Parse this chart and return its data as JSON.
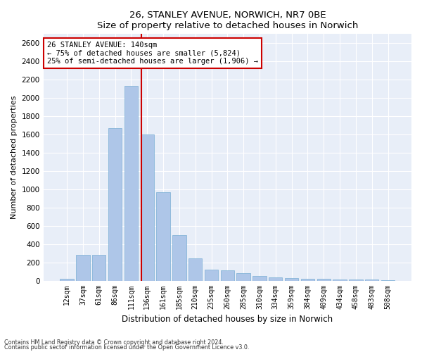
{
  "title1": "26, STANLEY AVENUE, NORWICH, NR7 0BE",
  "title2": "Size of property relative to detached houses in Norwich",
  "xlabel": "Distribution of detached houses by size in Norwich",
  "ylabel": "Number of detached properties",
  "categories": [
    "12sqm",
    "37sqm",
    "61sqm",
    "86sqm",
    "111sqm",
    "136sqm",
    "161sqm",
    "185sqm",
    "210sqm",
    "235sqm",
    "260sqm",
    "285sqm",
    "310sqm",
    "334sqm",
    "359sqm",
    "384sqm",
    "409sqm",
    "434sqm",
    "458sqm",
    "483sqm",
    "508sqm"
  ],
  "values": [
    20,
    280,
    280,
    1670,
    2130,
    1600,
    970,
    500,
    240,
    120,
    110,
    85,
    50,
    38,
    28,
    22,
    18,
    12,
    10,
    12,
    5
  ],
  "bar_color": "#aec6e8",
  "bar_edge_color": "#7aafd4",
  "vline_x_index": 5,
  "vline_color": "#cc0000",
  "annotation_text": "26 STANLEY AVENUE: 140sqm\n← 75% of detached houses are smaller (5,824)\n25% of semi-detached houses are larger (1,906) →",
  "annotation_box_color": "#cc0000",
  "ylim": [
    0,
    2700
  ],
  "yticks": [
    0,
    200,
    400,
    600,
    800,
    1000,
    1200,
    1400,
    1600,
    1800,
    2000,
    2200,
    2400,
    2600
  ],
  "bg_color": "#e8eef8",
  "footnote1": "Contains HM Land Registry data © Crown copyright and database right 2024.",
  "footnote2": "Contains public sector information licensed under the Open Government Licence v3.0."
}
